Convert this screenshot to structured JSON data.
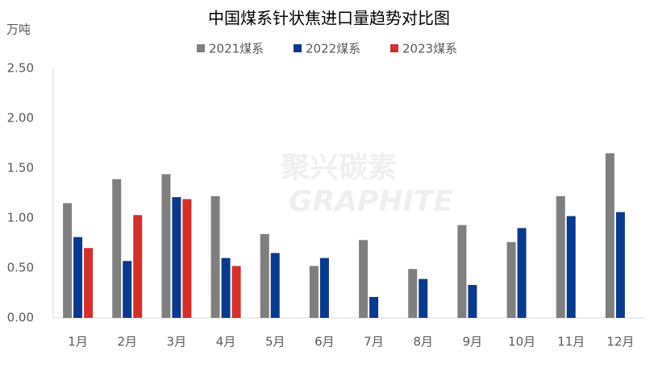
{
  "chart_data": {
    "type": "bar",
    "title": "中国煤系针状焦进口量趋势对比图",
    "y_label": "万吨",
    "watermark": [
      "聚兴碳素",
      "GRAPHITE"
    ],
    "categories": [
      "1月",
      "2月",
      "3月",
      "4月",
      "5月",
      "6月",
      "7月",
      "8月",
      "9月",
      "10月",
      "11月",
      "12月"
    ],
    "series": [
      {
        "name": "2021煤系",
        "color": "#7f7f7f",
        "values": [
          1.15,
          1.39,
          1.44,
          1.22,
          0.84,
          0.52,
          0.78,
          0.49,
          0.93,
          0.76,
          1.22,
          1.65
        ]
      },
      {
        "name": "2022煤系",
        "color": "#0a3a8c",
        "values": [
          0.81,
          0.57,
          1.21,
          0.6,
          0.65,
          0.6,
          0.21,
          0.39,
          0.33,
          0.9,
          1.02,
          1.06
        ]
      },
      {
        "name": "2023煤系",
        "color": "#d2302a",
        "values": [
          0.7,
          1.03,
          1.19,
          0.52,
          null,
          null,
          null,
          null,
          null,
          null,
          null,
          null
        ]
      }
    ],
    "ylim": [
      0,
      2.5
    ],
    "yticks": [
      {
        "value": 0,
        "label": "0.00"
      },
      {
        "value": 0.5,
        "label": "0.50"
      },
      {
        "value": 1,
        "label": "1.00"
      },
      {
        "value": 1.5,
        "label": "1.50"
      },
      {
        "value": 2,
        "label": "2.00"
      },
      {
        "value": 2.5,
        "label": "2.50"
      }
    ],
    "grid": false
  }
}
